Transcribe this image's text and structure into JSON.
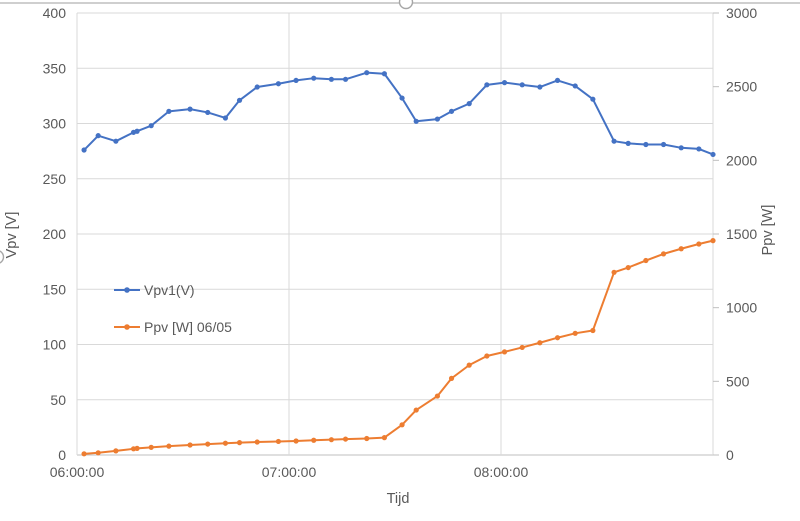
{
  "chart_data": {
    "type": "line",
    "title": "",
    "xlabel": "Tijd",
    "ylabel_left": "Vpv [V]",
    "ylabel_right": "Ppv [W]",
    "x_tick_labels": [
      "06:00:00",
      "07:00:00",
      "08:00:00"
    ],
    "x_tick_hours": [
      6,
      7,
      8
    ],
    "x_range_hours": [
      6,
      9
    ],
    "y_left_ticks": [
      0,
      50,
      100,
      150,
      200,
      250,
      300,
      350,
      400
    ],
    "ylim_left": [
      0,
      400
    ],
    "y_right_ticks": [
      0,
      500,
      1000,
      1500,
      2000,
      2500,
      3000
    ],
    "ylim_right": [
      0,
      3000
    ],
    "grid": true,
    "legend_position": "inside-left",
    "x_times": [
      "06:02",
      "06:06",
      "06:11",
      "06:16",
      "06:17",
      "06:21",
      "06:26",
      "06:32",
      "06:37",
      "06:42",
      "06:46",
      "06:51",
      "06:57",
      "07:02",
      "07:07",
      "07:12",
      "07:16",
      "07:22",
      "07:27",
      "07:32",
      "07:36",
      "07:42",
      "07:46",
      "07:51",
      "07:56",
      "08:01",
      "08:06",
      "08:11",
      "08:16",
      "08:21",
      "08:26",
      "08:32",
      "08:36",
      "08:41",
      "08:46",
      "08:51",
      "08:56",
      "09:00"
    ],
    "series": [
      {
        "name": "Vpv1(V)",
        "axis": "left",
        "color": "#4472C4",
        "values": [
          276,
          289,
          284,
          292,
          293,
          298,
          311,
          313,
          310,
          305,
          321,
          333,
          336,
          339,
          341,
          340,
          340,
          346,
          345,
          323,
          302,
          304,
          311,
          318,
          335,
          337,
          335,
          333,
          339,
          334,
          322,
          284,
          282,
          281,
          281,
          278,
          277,
          272
        ]
      },
      {
        "name": "Ppv [W] 06/05",
        "axis": "right",
        "color": "#ED7D31",
        "values": [
          8,
          15,
          28,
          42,
          45,
          52,
          60,
          68,
          74,
          80,
          84,
          88,
          92,
          95,
          100,
          104,
          108,
          112,
          118,
          205,
          305,
          400,
          520,
          610,
          672,
          700,
          730,
          762,
          796,
          826,
          845,
          1240,
          1272,
          1320,
          1365,
          1400,
          1432,
          1455
        ]
      }
    ],
    "colors": {
      "gridline": "#D9D9D9",
      "axis_line": "#BFBFBF",
      "text": "#595959",
      "selection_border": "#BFBFBF",
      "selection_handle_stroke": "#A6A6A6"
    }
  }
}
